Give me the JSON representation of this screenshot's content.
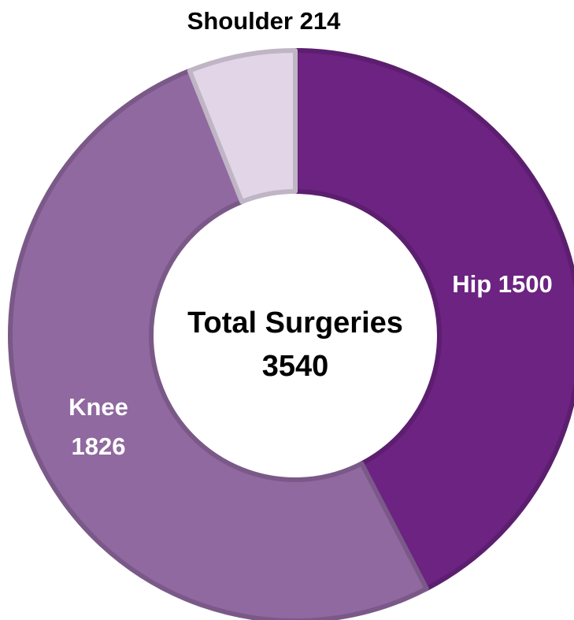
{
  "chart_data": {
    "type": "donut",
    "categories": [
      "Hip",
      "Knee",
      "Shoulder"
    ],
    "values": [
      1500,
      1826,
      214
    ],
    "colors": [
      "#6c2382",
      "#9069a0",
      "#e1d5e7"
    ],
    "label_colors": [
      "#ffffff",
      "#ffffff",
      "#000000"
    ],
    "center_label": "Total Surgeries",
    "total": 3540
  }
}
